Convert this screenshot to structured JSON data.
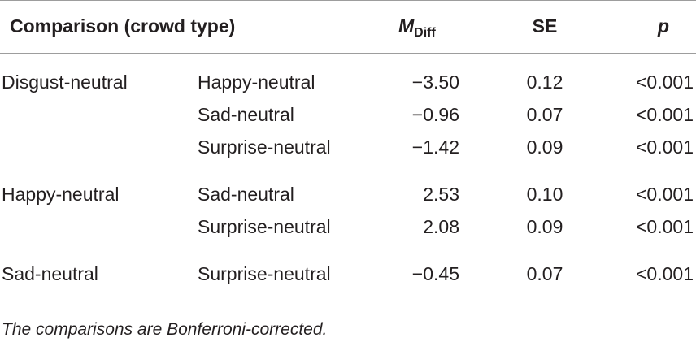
{
  "table": {
    "header": {
      "comparison": "Comparison (crowd type)",
      "m_diff": {
        "symbol": "M",
        "subscript": "Diff"
      },
      "se": "SE",
      "p": "p"
    },
    "groups": [
      {
        "label": "Disgust-neutral",
        "rows": [
          [
            "Happy-neutral",
            "−3.50",
            "0.12",
            "<0.001"
          ],
          [
            "Sad-neutral",
            "−0.96",
            "0.07",
            "<0.001"
          ],
          [
            "Surprise-neutral",
            "−1.42",
            "0.09",
            "<0.001"
          ]
        ]
      },
      {
        "label": "Happy-neutral",
        "rows": [
          [
            "Sad-neutral",
            "2.53",
            "0.10",
            "<0.001"
          ],
          [
            "Surprise-neutral",
            "2.08",
            "0.09",
            "<0.001"
          ]
        ]
      },
      {
        "label": "Sad-neutral",
        "rows": [
          [
            "Surprise-neutral",
            "−0.45",
            "0.07",
            "<0.001"
          ]
        ]
      }
    ],
    "footnote": "The comparisons are Bonferroni-corrected."
  }
}
